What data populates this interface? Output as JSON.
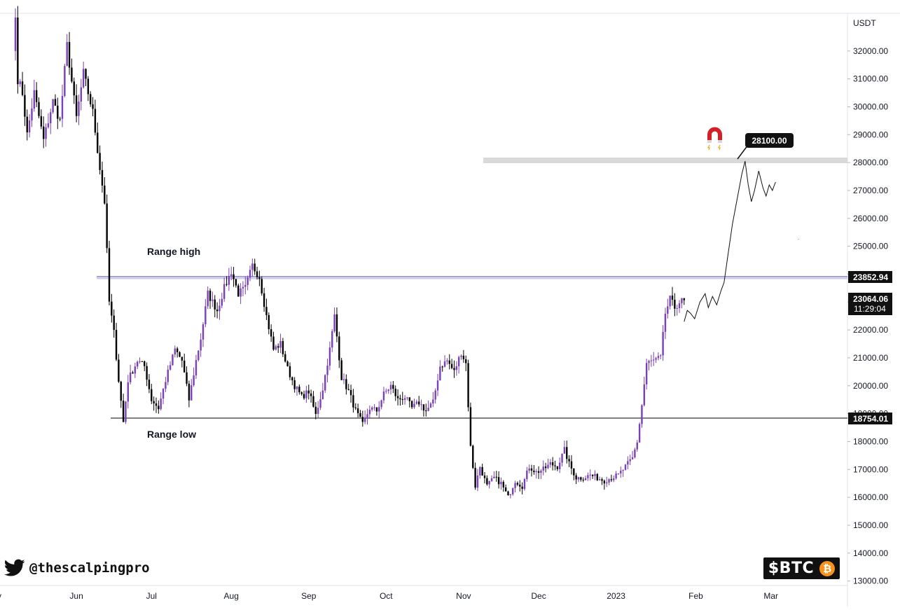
{
  "chart_data": {
    "type": "candlestick",
    "symbol": "$BTC",
    "currency": "USDT",
    "ylim": [
      12840,
      33350
    ],
    "y_ticks": [
      "13000.00",
      "14000.00",
      "15000.00",
      "16000.00",
      "17000.00",
      "18000.00",
      "19000.00",
      "20000.00",
      "21000.00",
      "22000.00",
      "23000.00",
      "24000.00",
      "25000.00",
      "26000.00",
      "27000.00",
      "28000.00",
      "29000.00",
      "30000.00",
      "31000.00",
      "32000.00"
    ],
    "x_labels": [
      "Jun",
      "Jul",
      "Aug",
      "Sep",
      "Oct",
      "Nov",
      "Dec",
      "2023",
      "Feb",
      "Mar"
    ],
    "colors": {
      "up": "#7b3fb8",
      "down": "#000000",
      "zone": "#d9d9d9",
      "range_high_line": "#4a4aa6"
    },
    "anchors": [
      {
        "i": 0,
        "v": 33200
      },
      {
        "i": 1,
        "v": 31000
      },
      {
        "i": 3,
        "v": 30500
      },
      {
        "i": 5,
        "v": 29000
      },
      {
        "i": 8,
        "v": 30500
      },
      {
        "i": 12,
        "v": 28800
      },
      {
        "i": 16,
        "v": 30200
      },
      {
        "i": 19,
        "v": 29500
      },
      {
        "i": 22,
        "v": 32200
      },
      {
        "i": 26,
        "v": 29600
      },
      {
        "i": 29,
        "v": 31200
      },
      {
        "i": 33,
        "v": 29800
      },
      {
        "i": 36,
        "v": 27800
      },
      {
        "i": 38,
        "v": 26600
      },
      {
        "i": 40,
        "v": 23000
      },
      {
        "i": 42,
        "v": 21900
      },
      {
        "i": 44,
        "v": 20200
      },
      {
        "i": 46,
        "v": 18700
      },
      {
        "i": 48,
        "v": 20200
      },
      {
        "i": 52,
        "v": 20900
      },
      {
        "i": 55,
        "v": 20700
      },
      {
        "i": 58,
        "v": 19500
      },
      {
        "i": 61,
        "v": 19200
      },
      {
        "i": 64,
        "v": 20200
      },
      {
        "i": 68,
        "v": 21300
      },
      {
        "i": 71,
        "v": 20900
      },
      {
        "i": 74,
        "v": 19500
      },
      {
        "i": 77,
        "v": 20900
      },
      {
        "i": 79,
        "v": 21700
      },
      {
        "i": 82,
        "v": 23300
      },
      {
        "i": 86,
        "v": 22700
      },
      {
        "i": 89,
        "v": 23500
      },
      {
        "i": 92,
        "v": 24100
      },
      {
        "i": 95,
        "v": 23300
      },
      {
        "i": 98,
        "v": 23500
      },
      {
        "i": 101,
        "v": 24300
      },
      {
        "i": 104,
        "v": 23900
      },
      {
        "i": 107,
        "v": 22500
      },
      {
        "i": 110,
        "v": 21300
      },
      {
        "i": 113,
        "v": 21500
      },
      {
        "i": 116,
        "v": 20600
      },
      {
        "i": 119,
        "v": 20000
      },
      {
        "i": 122,
        "v": 19600
      },
      {
        "i": 125,
        "v": 19800
      },
      {
        "i": 128,
        "v": 18950
      },
      {
        "i": 131,
        "v": 19900
      },
      {
        "i": 134,
        "v": 21300
      },
      {
        "i": 136,
        "v": 22500
      },
      {
        "i": 139,
        "v": 20300
      },
      {
        "i": 142,
        "v": 19800
      },
      {
        "i": 145,
        "v": 19100
      },
      {
        "i": 148,
        "v": 18600
      },
      {
        "i": 151,
        "v": 19200
      },
      {
        "i": 154,
        "v": 19100
      },
      {
        "i": 157,
        "v": 19700
      },
      {
        "i": 160,
        "v": 20000
      },
      {
        "i": 163,
        "v": 19500
      },
      {
        "i": 166,
        "v": 19600
      },
      {
        "i": 169,
        "v": 19200
      },
      {
        "i": 172,
        "v": 19400
      },
      {
        "i": 175,
        "v": 19100
      },
      {
        "i": 178,
        "v": 19400
      },
      {
        "i": 181,
        "v": 20700
      },
      {
        "i": 184,
        "v": 20900
      },
      {
        "i": 187,
        "v": 20500
      },
      {
        "i": 190,
        "v": 21200
      },
      {
        "i": 192,
        "v": 20800
      },
      {
        "i": 194,
        "v": 17800
      },
      {
        "i": 196,
        "v": 16400
      },
      {
        "i": 198,
        "v": 17100
      },
      {
        "i": 201,
        "v": 16400
      },
      {
        "i": 204,
        "v": 16700
      },
      {
        "i": 207,
        "v": 16500
      },
      {
        "i": 210,
        "v": 16000
      },
      {
        "i": 213,
        "v": 16600
      },
      {
        "i": 216,
        "v": 16400
      },
      {
        "i": 219,
        "v": 17100
      },
      {
        "i": 222,
        "v": 16900
      },
      {
        "i": 225,
        "v": 17000
      },
      {
        "i": 228,
        "v": 17200
      },
      {
        "i": 231,
        "v": 17100
      },
      {
        "i": 234,
        "v": 17700
      },
      {
        "i": 236,
        "v": 17200
      },
      {
        "i": 239,
        "v": 16700
      },
      {
        "i": 242,
        "v": 16700
      },
      {
        "i": 245,
        "v": 16800
      },
      {
        "i": 248,
        "v": 16700
      },
      {
        "i": 251,
        "v": 16600
      },
      {
        "i": 254,
        "v": 16700
      },
      {
        "i": 257,
        "v": 16800
      },
      {
        "i": 260,
        "v": 17100
      },
      {
        "i": 263,
        "v": 17400
      },
      {
        "i": 265,
        "v": 18000
      },
      {
        "i": 267,
        "v": 19300
      },
      {
        "i": 269,
        "v": 20800
      },
      {
        "i": 272,
        "v": 20900
      },
      {
        "i": 275,
        "v": 21000
      },
      {
        "i": 277,
        "v": 22600
      },
      {
        "i": 279,
        "v": 23100
      },
      {
        "i": 281,
        "v": 22800
      },
      {
        "i": 283,
        "v": 23000
      },
      {
        "i": 285,
        "v": 23064
      }
    ],
    "annotations": {
      "range_high": {
        "label": "Range high",
        "price": 23852.94,
        "price_label": "23852.94"
      },
      "range_low": {
        "label": "Range low",
        "price": 18754.01,
        "price_label": "18754.01"
      },
      "resistance_zone": {
        "price_top": 28150,
        "price_bottom": 27950
      },
      "target": {
        "price_label": "28100.00"
      },
      "current": {
        "price_label": "23064.06",
        "timer": "11:29:04"
      },
      "projection": [
        [
          22300,
          0.0
        ],
        [
          22700,
          0.15
        ],
        [
          22600,
          0.3
        ],
        [
          22400,
          0.5
        ],
        [
          23000,
          0.75
        ],
        [
          23300,
          1.0
        ],
        [
          22800,
          1.15
        ],
        [
          23200,
          1.35
        ],
        [
          22900,
          1.55
        ],
        [
          23400,
          1.75
        ],
        [
          23700,
          1.9
        ],
        [
          24500,
          2.05
        ],
        [
          25800,
          2.3
        ],
        [
          27000,
          2.6
        ],
        [
          27600,
          2.75
        ],
        [
          28050,
          2.9
        ],
        [
          27200,
          3.05
        ],
        [
          26600,
          3.2
        ],
        [
          27000,
          3.35
        ],
        [
          27700,
          3.55
        ],
        [
          27100,
          3.75
        ],
        [
          26800,
          3.9
        ],
        [
          27200,
          4.05
        ],
        [
          27000,
          4.2
        ],
        [
          27300,
          4.35
        ]
      ]
    }
  },
  "branding": {
    "icons": {
      "twitter": "twitter-bird-icon",
      "bitcoin": "bitcoin-coin-icon",
      "magnet": "magnet-icon"
    },
    "twitter_handle": "@thescalpingpro",
    "ticker_badge": "$BTC"
  }
}
